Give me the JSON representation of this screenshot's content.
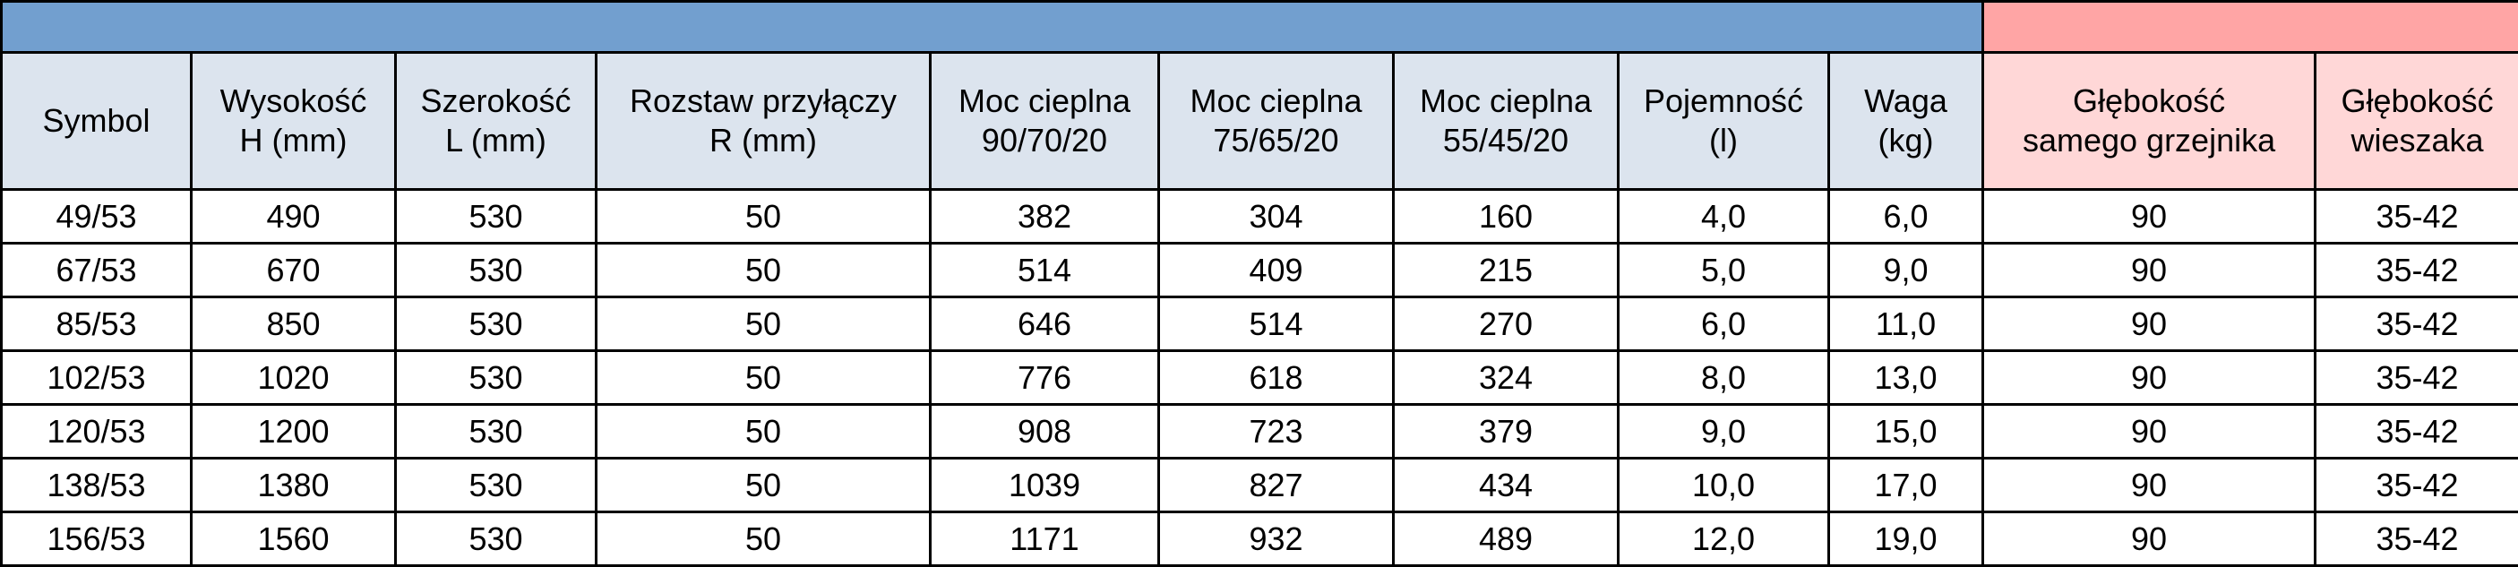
{
  "colors": {
    "band_blue": "#729fcf",
    "band_pink": "#ffa5a5",
    "header_blue": "#dce4ee",
    "header_pink": "#ffd7d7"
  },
  "headers": [
    "Symbol",
    "Wysokość\nH (mm)",
    "Szerokość\nL (mm)",
    "Rozstaw przyłączy\nR (mm)",
    "Moc cieplna\n90/70/20",
    "Moc cieplna\n75/65/20",
    "Moc cieplna\n55/45/20",
    "Pojemność\n(l)",
    "Waga\n(kg)",
    "Głębokość\nsamego grzejnika",
    "Głębokość\nwieszaka"
  ],
  "rows": [
    [
      "49/53",
      "490",
      "530",
      "50",
      "382",
      "304",
      "160",
      "4,0",
      "6,0",
      "90",
      "35-42"
    ],
    [
      "67/53",
      "670",
      "530",
      "50",
      "514",
      "409",
      "215",
      "5,0",
      "9,0",
      "90",
      "35-42"
    ],
    [
      "85/53",
      "850",
      "530",
      "50",
      "646",
      "514",
      "270",
      "6,0",
      "11,0",
      "90",
      "35-42"
    ],
    [
      "102/53",
      "1020",
      "530",
      "50",
      "776",
      "618",
      "324",
      "8,0",
      "13,0",
      "90",
      "35-42"
    ],
    [
      "120/53",
      "1200",
      "530",
      "50",
      "908",
      "723",
      "379",
      "9,0",
      "15,0",
      "90",
      "35-42"
    ],
    [
      "138/53",
      "1380",
      "530",
      "50",
      "1039",
      "827",
      "434",
      "10,0",
      "17,0",
      "90",
      "35-42"
    ],
    [
      "156/53",
      "1560",
      "530",
      "50",
      "1171",
      "932",
      "489",
      "12,0",
      "19,0",
      "90",
      "35-42"
    ]
  ]
}
